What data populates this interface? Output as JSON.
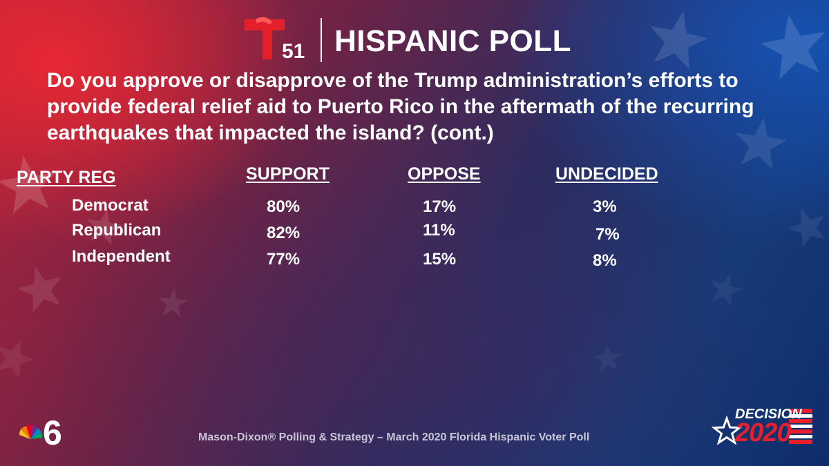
{
  "header": {
    "logo_text": "51",
    "title": "HISPANIC POLL"
  },
  "question": "Do you approve or disapprove of the Trump administration’s efforts to provide federal relief aid to Puerto Rico in the aftermath of the recurring earthquakes that impacted the island? (cont.)",
  "table": {
    "headers": {
      "group": "PARTY REG",
      "support": "SUPPORT",
      "oppose": "OPPOSE",
      "undecided": "UNDECIDED"
    },
    "rows": [
      {
        "label": "Democrat",
        "support": "80%",
        "oppose": "17%",
        "undecided": "3%"
      },
      {
        "label": "Republican",
        "support": "82%",
        "oppose": "11%",
        "undecided": "7%"
      },
      {
        "label": "Independent",
        "support": "77%",
        "oppose": "15%",
        "undecided": "8%"
      }
    ]
  },
  "footer": {
    "source": "Mason-Dixon® Polling & Strategy – March 2020 Florida Hispanic Voter Poll",
    "decision_label": "DECISION",
    "decision_year": "2020"
  },
  "colors": {
    "brand_red": "#e3202b",
    "accent_blue": "#1c3f8f",
    "text": "#ffffff"
  },
  "icons": [
    "telemundo-t-logo",
    "nbc-peacock-6-logo",
    "decision-2020-logo"
  ]
}
